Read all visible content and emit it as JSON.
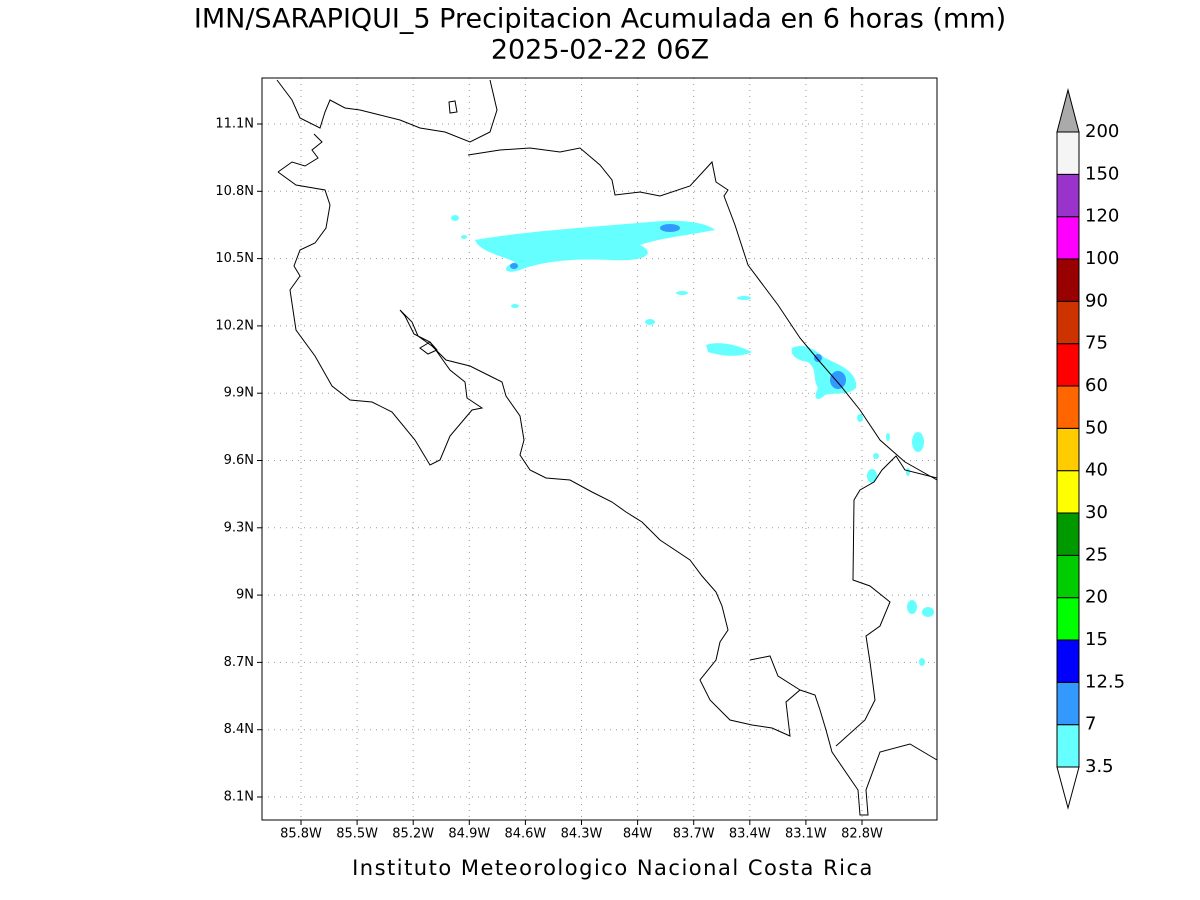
{
  "title": "IMN/SARAPIQUI_5 Precipitacion Acumulada en 6 horas (mm)",
  "subtitle": "2025-02-22 06Z",
  "x_axis": {
    "ticks": [
      "85.8W",
      "85.5W",
      "85.2W",
      "84.9W",
      "84.6W",
      "84.3W",
      "84W",
      "83.7W",
      "83.4W",
      "83.1W",
      "82.8W"
    ]
  },
  "y_axis": {
    "ticks": [
      "11.1N",
      "10.8N",
      "10.5N",
      "10.2N",
      "9.9N",
      "9.6N",
      "9.3N",
      "9N",
      "8.7N",
      "8.4N",
      "8.1N"
    ]
  },
  "colorbar": {
    "levels": [
      3.5,
      7,
      12.5,
      15,
      20,
      25,
      30,
      40,
      50,
      60,
      75,
      90,
      100,
      120,
      150,
      200
    ],
    "colors": [
      "#66ffff",
      "#3399ff",
      "#0000ff",
      "#00ff00",
      "#00cc00",
      "#009900",
      "#ffff00",
      "#ffcc00",
      "#ff6600",
      "#ff0000",
      "#cc3300",
      "#990000",
      "#ff00ff",
      "#9933cc",
      "#f5f5f5"
    ],
    "under_color": "#ffffff",
    "over_color": "#aaaaaa"
  },
  "footer": "Instituto Meteorologico Nacional Costa Rica"
}
